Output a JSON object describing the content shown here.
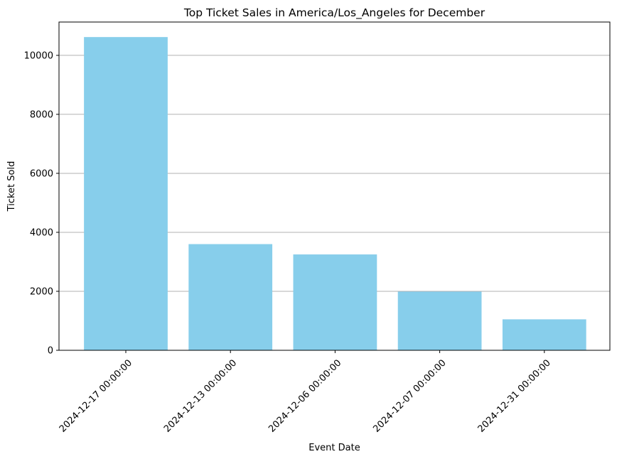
{
  "chart_data": {
    "type": "bar",
    "title": "Top Ticket Sales in America/Los_Angeles for December",
    "xlabel": "Event Date",
    "ylabel": "Ticket Sold",
    "categories": [
      "2024-12-17 00:00:00",
      "2024-12-13 00:00:00",
      "2024-12-06 00:00:00",
      "2024-12-07 00:00:00",
      "2024-12-31 00:00:00"
    ],
    "values": [
      10620,
      3600,
      3250,
      1990,
      1050
    ],
    "ylim": [
      0,
      11130
    ],
    "yticks": [
      0,
      2000,
      4000,
      6000,
      8000,
      10000
    ],
    "ytick_labels": [
      "0",
      "2000",
      "4000",
      "6000",
      "8000",
      "10000"
    ],
    "grid": "y-major",
    "bar_color": "#87ceeb",
    "grid_color": "#b0b0b0",
    "tick_label_rotation_deg": 45
  }
}
